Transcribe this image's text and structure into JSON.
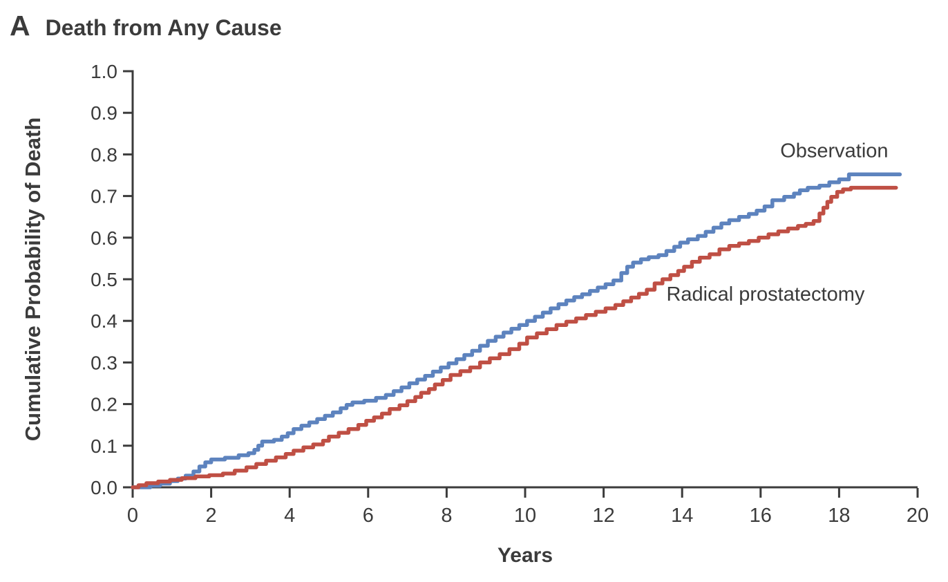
{
  "header": {
    "panel_label": "A",
    "title": "Death from Any Cause"
  },
  "chart_data": {
    "type": "line",
    "subtype": "kaplan-meier-step",
    "title": "Death from Any Cause",
    "xlabel": "Years",
    "ylabel": "Cumulative Probability of Death",
    "xlim": [
      0,
      20
    ],
    "ylim": [
      0,
      1
    ],
    "x_ticks": [
      0,
      2,
      4,
      6,
      8,
      10,
      12,
      14,
      16,
      18,
      20
    ],
    "x_tick_labels": [
      "0",
      "2",
      "4",
      "6",
      "8",
      "10",
      "12",
      "14",
      "16",
      "18",
      "20"
    ],
    "y_ticks": [
      0.0,
      0.1,
      0.2,
      0.3,
      0.4,
      0.5,
      0.6,
      0.7,
      0.8,
      0.9,
      1.0
    ],
    "y_tick_labels": [
      "0.0",
      "0.1",
      "0.2",
      "0.3",
      "0.4",
      "0.5",
      "0.6",
      "0.7",
      "0.8",
      "0.9",
      "1.0"
    ],
    "grid": false,
    "legend_position": "inline-labels",
    "axis_color": "#3b3b3b",
    "text_color": "#3b3b3b",
    "series": [
      {
        "name": "Observation",
        "color": "#5d83be",
        "label_at": {
          "x": 16.5,
          "y": 0.81,
          "anchor": "start"
        },
        "points": [
          [
            0,
            0
          ],
          [
            0.45,
            0.004
          ],
          [
            0.7,
            0.009
          ],
          [
            0.95,
            0.015
          ],
          [
            1.15,
            0.021
          ],
          [
            1.35,
            0.028
          ],
          [
            1.55,
            0.038
          ],
          [
            1.7,
            0.05
          ],
          [
            1.85,
            0.06
          ],
          [
            2.0,
            0.067
          ],
          [
            2.35,
            0.071
          ],
          [
            2.7,
            0.077
          ],
          [
            2.95,
            0.082
          ],
          [
            3.1,
            0.09
          ],
          [
            3.2,
            0.1
          ],
          [
            3.3,
            0.11
          ],
          [
            3.6,
            0.114
          ],
          [
            3.8,
            0.122
          ],
          [
            3.95,
            0.13
          ],
          [
            4.1,
            0.14
          ],
          [
            4.3,
            0.148
          ],
          [
            4.5,
            0.156
          ],
          [
            4.7,
            0.164
          ],
          [
            4.9,
            0.172
          ],
          [
            5.1,
            0.18
          ],
          [
            5.3,
            0.19
          ],
          [
            5.45,
            0.198
          ],
          [
            5.6,
            0.204
          ],
          [
            5.9,
            0.208
          ],
          [
            6.2,
            0.215
          ],
          [
            6.45,
            0.222
          ],
          [
            6.65,
            0.231
          ],
          [
            6.85,
            0.24
          ],
          [
            7.05,
            0.25
          ],
          [
            7.25,
            0.259
          ],
          [
            7.45,
            0.268
          ],
          [
            7.65,
            0.278
          ],
          [
            7.85,
            0.288
          ],
          [
            8.05,
            0.298
          ],
          [
            8.25,
            0.308
          ],
          [
            8.45,
            0.318
          ],
          [
            8.65,
            0.328
          ],
          [
            8.85,
            0.34
          ],
          [
            9.05,
            0.352
          ],
          [
            9.25,
            0.362
          ],
          [
            9.45,
            0.372
          ],
          [
            9.65,
            0.381
          ],
          [
            9.85,
            0.39
          ],
          [
            10.05,
            0.4
          ],
          [
            10.25,
            0.41
          ],
          [
            10.45,
            0.42
          ],
          [
            10.65,
            0.43
          ],
          [
            10.85,
            0.44
          ],
          [
            11.05,
            0.449
          ],
          [
            11.25,
            0.457
          ],
          [
            11.45,
            0.464
          ],
          [
            11.65,
            0.472
          ],
          [
            11.85,
            0.48
          ],
          [
            12.05,
            0.488
          ],
          [
            12.25,
            0.497
          ],
          [
            12.45,
            0.515
          ],
          [
            12.6,
            0.53
          ],
          [
            12.75,
            0.54
          ],
          [
            12.95,
            0.548
          ],
          [
            13.15,
            0.553
          ],
          [
            13.4,
            0.558
          ],
          [
            13.6,
            0.568
          ],
          [
            13.8,
            0.578
          ],
          [
            13.95,
            0.588
          ],
          [
            14.15,
            0.596
          ],
          [
            14.4,
            0.604
          ],
          [
            14.6,
            0.614
          ],
          [
            14.8,
            0.624
          ],
          [
            15.0,
            0.634
          ],
          [
            15.2,
            0.642
          ],
          [
            15.45,
            0.65
          ],
          [
            15.7,
            0.657
          ],
          [
            15.9,
            0.665
          ],
          [
            16.1,
            0.675
          ],
          [
            16.3,
            0.69
          ],
          [
            16.6,
            0.698
          ],
          [
            16.85,
            0.706
          ],
          [
            17.0,
            0.714
          ],
          [
            17.2,
            0.72
          ],
          [
            17.5,
            0.725
          ],
          [
            17.75,
            0.733
          ],
          [
            18.0,
            0.74
          ],
          [
            18.25,
            0.752
          ],
          [
            19.55,
            0.752
          ]
        ]
      },
      {
        "name": "Radical prostatectomy",
        "color": "#bf4f44",
        "label_at": {
          "x": 13.6,
          "y": 0.465,
          "anchor": "start"
        },
        "points": [
          [
            0,
            0
          ],
          [
            0.15,
            0.005
          ],
          [
            0.35,
            0.01
          ],
          [
            0.65,
            0.014
          ],
          [
            0.95,
            0.018
          ],
          [
            1.25,
            0.022
          ],
          [
            1.6,
            0.026
          ],
          [
            1.95,
            0.029
          ],
          [
            2.3,
            0.033
          ],
          [
            2.6,
            0.04
          ],
          [
            2.9,
            0.048
          ],
          [
            3.15,
            0.056
          ],
          [
            3.4,
            0.064
          ],
          [
            3.65,
            0.072
          ],
          [
            3.9,
            0.08
          ],
          [
            4.1,
            0.088
          ],
          [
            4.35,
            0.096
          ],
          [
            4.6,
            0.103
          ],
          [
            4.85,
            0.112
          ],
          [
            5.0,
            0.122
          ],
          [
            5.25,
            0.131
          ],
          [
            5.5,
            0.14
          ],
          [
            5.75,
            0.15
          ],
          [
            5.95,
            0.16
          ],
          [
            6.15,
            0.168
          ],
          [
            6.35,
            0.177
          ],
          [
            6.55,
            0.188
          ],
          [
            6.8,
            0.197
          ],
          [
            7.0,
            0.207
          ],
          [
            7.2,
            0.217
          ],
          [
            7.35,
            0.227
          ],
          [
            7.55,
            0.236
          ],
          [
            7.7,
            0.247
          ],
          [
            7.9,
            0.258
          ],
          [
            8.1,
            0.27
          ],
          [
            8.35,
            0.279
          ],
          [
            8.6,
            0.288
          ],
          [
            8.85,
            0.3
          ],
          [
            9.1,
            0.31
          ],
          [
            9.35,
            0.32
          ],
          [
            9.6,
            0.332
          ],
          [
            9.85,
            0.345
          ],
          [
            10.05,
            0.36
          ],
          [
            10.3,
            0.37
          ],
          [
            10.55,
            0.38
          ],
          [
            10.8,
            0.39
          ],
          [
            11.05,
            0.398
          ],
          [
            11.3,
            0.406
          ],
          [
            11.55,
            0.414
          ],
          [
            11.8,
            0.422
          ],
          [
            12.05,
            0.43
          ],
          [
            12.3,
            0.438
          ],
          [
            12.5,
            0.447
          ],
          [
            12.7,
            0.456
          ],
          [
            12.9,
            0.465
          ],
          [
            13.1,
            0.475
          ],
          [
            13.3,
            0.49
          ],
          [
            13.5,
            0.5
          ],
          [
            13.7,
            0.51
          ],
          [
            13.9,
            0.52
          ],
          [
            14.05,
            0.53
          ],
          [
            14.25,
            0.542
          ],
          [
            14.45,
            0.552
          ],
          [
            14.7,
            0.56
          ],
          [
            14.95,
            0.572
          ],
          [
            15.2,
            0.58
          ],
          [
            15.45,
            0.586
          ],
          [
            15.7,
            0.592
          ],
          [
            15.95,
            0.6
          ],
          [
            16.2,
            0.608
          ],
          [
            16.45,
            0.615
          ],
          [
            16.7,
            0.622
          ],
          [
            16.95,
            0.628
          ],
          [
            17.15,
            0.633
          ],
          [
            17.35,
            0.64
          ],
          [
            17.5,
            0.658
          ],
          [
            17.6,
            0.672
          ],
          [
            17.7,
            0.686
          ],
          [
            17.8,
            0.698
          ],
          [
            17.95,
            0.71
          ],
          [
            18.1,
            0.716
          ],
          [
            18.3,
            0.72
          ],
          [
            19.45,
            0.72
          ]
        ]
      }
    ]
  }
}
